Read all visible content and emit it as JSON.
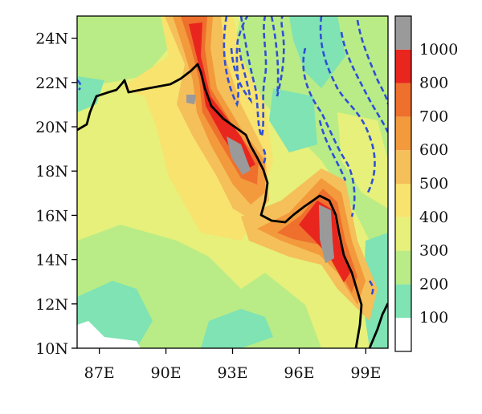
{
  "map": {
    "lon_range": [
      86,
      100
    ],
    "lat_range": [
      10,
      25
    ],
    "lon_ticks": [
      {
        "value": 87,
        "label": "87E"
      },
      {
        "value": 90,
        "label": "90E"
      },
      {
        "value": 93,
        "label": "93E"
      },
      {
        "value": 96,
        "label": "96E"
      },
      {
        "value": 99,
        "label": "99E"
      }
    ],
    "lat_ticks": [
      {
        "value": 10,
        "label": "10N"
      },
      {
        "value": 12,
        "label": "12N"
      },
      {
        "value": 14,
        "label": "14N"
      },
      {
        "value": 16,
        "label": "16N"
      },
      {
        "value": 18,
        "label": "18N"
      },
      {
        "value": 20,
        "label": "20N"
      },
      {
        "value": 22,
        "label": "22N"
      },
      {
        "value": 24,
        "label": "24N"
      }
    ],
    "coastline_color": "#000000",
    "contour_color": "#2f4fd6"
  },
  "colorbar": {
    "levels": [
      {
        "label": "100",
        "color": "#ffffff"
      },
      {
        "label": "200",
        "color": "#7fe3b3"
      },
      {
        "label": "300",
        "color": "#b9ec86"
      },
      {
        "label": "400",
        "color": "#e6f07a"
      },
      {
        "label": "500",
        "color": "#f7e36e"
      },
      {
        "label": "600",
        "color": "#f5bf5a"
      },
      {
        "label": "700",
        "color": "#f29a3c"
      },
      {
        "label": "800",
        "color": "#ef6f2d"
      },
      {
        "label": "1000",
        "color": "#e8261e"
      },
      {
        "label": "",
        "color": "#9a9a9a"
      }
    ]
  }
}
